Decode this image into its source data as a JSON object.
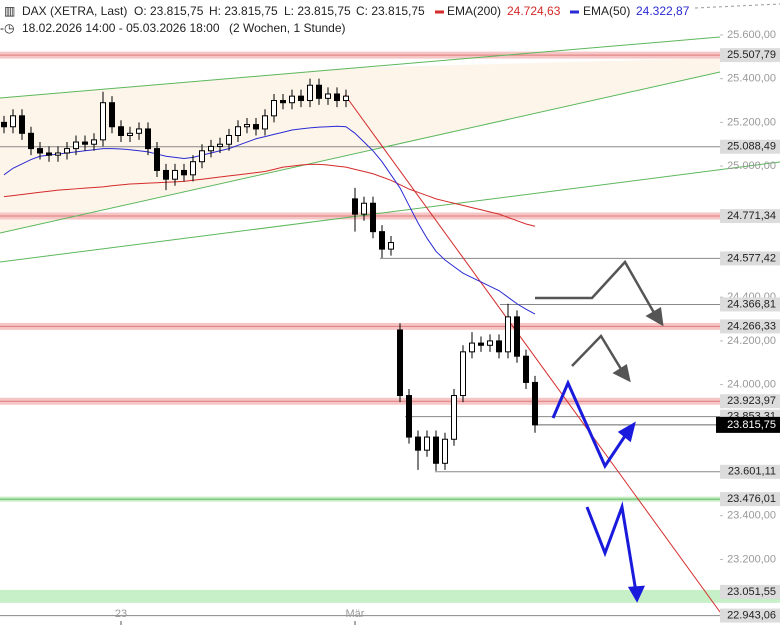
{
  "chart_data": {
    "type": "candlestick",
    "header": {
      "name": "DAX (XETRA, Last)",
      "open": "O: 23.815,75",
      "high": "H: 23.815,75",
      "low": "L: 23.815,75",
      "close": "C: 23.815,75",
      "range": "18.02.2026 14:00 - 05.03.2026 18:00",
      "interval": "(2 Wochen, 1 Stunde)"
    },
    "categories": [
      null,
      null,
      null,
      null,
      null,
      null,
      null,
      null,
      null,
      null,
      null,
      null,
      null,
      "23",
      null,
      null,
      null,
      null,
      null,
      null,
      null,
      null,
      null,
      null,
      null,
      null,
      null,
      null,
      null,
      null,
      null,
      null,
      null,
      null,
      null,
      null,
      null,
      null,
      null,
      "Mär",
      null,
      null,
      null,
      null,
      null,
      null,
      null,
      null,
      null,
      null,
      null,
      null,
      null,
      null,
      null,
      null,
      null,
      null,
      null,
      null
    ],
    "open": [
      25200,
      25180,
      25230,
      25150,
      25080,
      25060,
      25050,
      25060,
      25080,
      25110,
      25100,
      25120,
      25290,
      25180,
      25140,
      25150,
      25170,
      25080,
      24980,
      24940,
      24980,
      24960,
      25020,
      25070,
      25090,
      25100,
      25140,
      25180,
      25190,
      25170,
      25230,
      25300,
      25290,
      25320,
      25300,
      25370,
      25310,
      25330,
      25300,
      24850,
      24780,
      24830,
      24700,
      24620,
      24250,
      23950,
      23760,
      23700,
      23760,
      23640,
      23750,
      23950,
      24150,
      24190,
      24180,
      24200,
      24150,
      24310,
      24130,
      24010
    ],
    "high": [
      25230,
      25260,
      25260,
      25180,
      25110,
      25090,
      25090,
      25110,
      25140,
      25140,
      25150,
      25340,
      25320,
      25210,
      25180,
      25200,
      25200,
      25110,
      25010,
      25010,
      25010,
      25050,
      25100,
      25120,
      25130,
      25170,
      25210,
      25220,
      25220,
      25260,
      25330,
      25330,
      25350,
      25350,
      25400,
      25400,
      25360,
      25360,
      25350,
      24900,
      24860,
      24860,
      24730,
      24680,
      24280,
      23980,
      23790,
      23790,
      23790,
      23780,
      23980,
      24180,
      24240,
      24220,
      24230,
      24230,
      24370,
      24340,
      24160,
      24040
    ],
    "low": [
      25150,
      25150,
      25120,
      25050,
      25030,
      25020,
      25020,
      25030,
      25050,
      25070,
      25070,
      25090,
      25150,
      25110,
      25110,
      25120,
      25050,
      24950,
      24890,
      24910,
      24930,
      24930,
      24990,
      25040,
      25060,
      25070,
      25110,
      25150,
      25140,
      25140,
      25200,
      25260,
      25260,
      25270,
      25270,
      25280,
      25280,
      25270,
      25270,
      24700,
      24750,
      24670,
      24580,
      24590,
      23920,
      23730,
      23610,
      23670,
      23605,
      23610,
      23720,
      23920,
      24120,
      24150,
      24150,
      24120,
      24120,
      24100,
      23980,
      23780
    ],
    "close": [
      25180,
      25230,
      25150,
      25080,
      25060,
      25050,
      25060,
      25080,
      25110,
      25100,
      25120,
      25290,
      25180,
      25140,
      25150,
      25170,
      25080,
      24980,
      24940,
      24980,
      24960,
      25020,
      25070,
      25090,
      25100,
      25140,
      25180,
      25190,
      25170,
      25230,
      25300,
      25290,
      25320,
      25300,
      25370,
      25310,
      25330,
      25300,
      25320,
      24780,
      24830,
      24700,
      24620,
      24650,
      23950,
      23760,
      23700,
      23760,
      23640,
      23750,
      23950,
      24150,
      24190,
      24180,
      24200,
      24150,
      24310,
      24130,
      24010,
      23815.75
    ],
    "series": [
      {
        "name": "EMA(200)",
        "color": "#d42a2a",
        "legend_value": "24.724,63",
        "values": [
          24860,
          24865,
          24870,
          24875,
          24880,
          24885,
          24890,
          24893,
          24896,
          24899,
          24902,
          24905,
          24910,
          24914,
          24918,
          24920,
          24922,
          24924,
          24926,
          24928,
          24930,
          24935,
          24940,
          24945,
          24950,
          24955,
          24960,
          24965,
          24970,
          24975,
          24985,
          24995,
          25000,
          25005,
          25008,
          25008,
          25005,
          25000,
          24995,
          24985,
          24975,
          24965,
          24950,
          24935,
          24915,
          24895,
          24880,
          24865,
          24850,
          24840,
          24830,
          24820,
          24810,
          24800,
          24790,
          24780,
          24765,
          24750,
          24735,
          24724.63
        ]
      },
      {
        "name": "EMA(50)",
        "color": "#2a2ad4",
        "legend_value": "24.322,87",
        "values": [
          24960,
          24990,
          25010,
          25030,
          25045,
          25050,
          25055,
          25060,
          25065,
          25070,
          25075,
          25080,
          25080,
          25078,
          25075,
          25070,
          25065,
          25055,
          25045,
          25040,
          25035,
          25040,
          25050,
          25060,
          25070,
          25080,
          25095,
          25110,
          25125,
          25135,
          25145,
          25155,
          25165,
          25170,
          25175,
          25178,
          25180,
          25182,
          25180,
          25150,
          25110,
          25070,
          25020,
          24960,
          24900,
          24820,
          24740,
          24670,
          24610,
          24570,
          24540,
          24510,
          24490,
          24470,
          24450,
          24430,
          24400,
          24370,
          24345,
          24322.87
        ]
      }
    ],
    "ylim": [
      22900,
      25760
    ],
    "yticks": [
      {
        "value": 25600,
        "label": "25.600,00"
      },
      {
        "value": 25400,
        "label": "25.400,00"
      },
      {
        "value": 25200,
        "label": "25.200,00"
      },
      {
        "value": 25000,
        "label": "25.000,00"
      },
      {
        "value": 24400,
        "label": "24.400,00"
      },
      {
        "value": 24200,
        "label": "24.200,00"
      },
      {
        "value": 24000,
        "label": "24.000,00"
      },
      {
        "value": 23400,
        "label": "23.400,00"
      },
      {
        "value": 23200,
        "label": "23.200,00"
      }
    ],
    "levels": [
      {
        "value": 25507.79,
        "label": "25.507,79",
        "kind": "resistance"
      },
      {
        "value": 25088.49,
        "label": "25.088,49",
        "kind": "line"
      },
      {
        "value": 24771.34,
        "label": "24.771,34",
        "kind": "resistance"
      },
      {
        "value": 24577.42,
        "label": "24.577,42",
        "kind": "line"
      },
      {
        "value": 24366.81,
        "label": "24.366,81",
        "kind": "line"
      },
      {
        "value": 24266.33,
        "label": "24.266,33",
        "kind": "resistance"
      },
      {
        "value": 23923.97,
        "label": "23.923,97",
        "kind": "resistance"
      },
      {
        "value": 23853.31,
        "label": "23.853,31",
        "kind": "line"
      },
      {
        "value": 23601.11,
        "label": "23.601,11",
        "kind": "line"
      },
      {
        "value": 23476.01,
        "label": "23.476,01",
        "kind": "support"
      },
      {
        "value": 23051.55,
        "label": "23.051,55",
        "kind": "support-zone"
      },
      {
        "value": 22943.06,
        "label": "22.943,06",
        "kind": "line"
      }
    ],
    "last_price": {
      "value": 23815.75,
      "label": "23.815,75"
    }
  }
}
